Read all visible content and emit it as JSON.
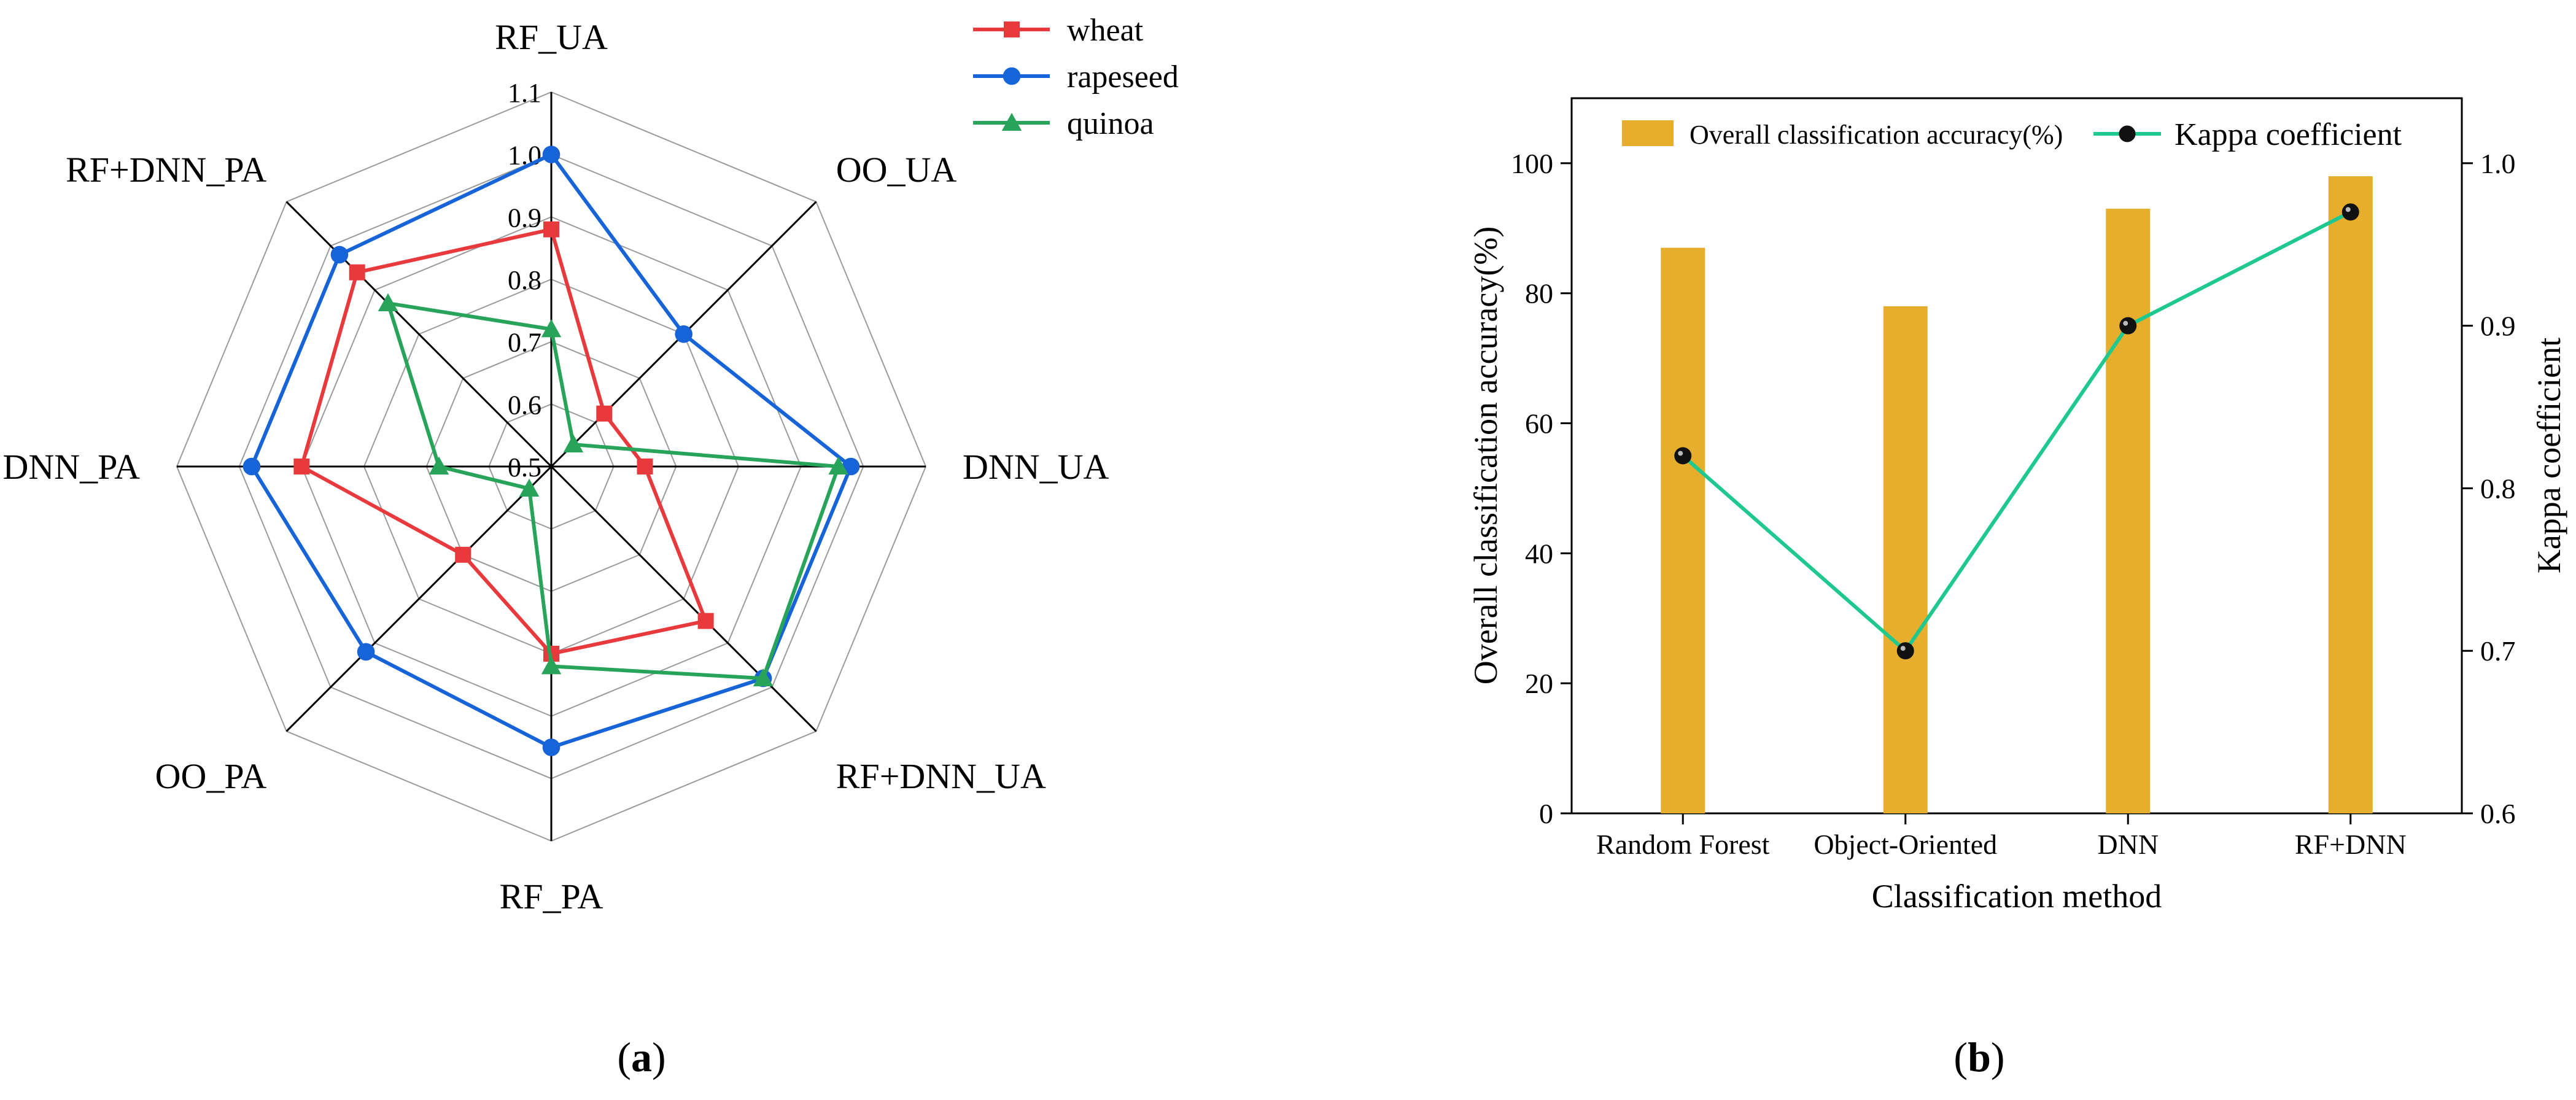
{
  "chart_data": [
    {
      "type": "radar",
      "panel_label": {
        "open": "(",
        "letter": "a",
        "close": ")"
      },
      "axes": [
        "RF_UA",
        "OO_UA",
        "DNN_UA",
        "RF+DNN_UA",
        "RF_PA",
        "OO_PA",
        "DNN_PA",
        "RF+DNN_PA"
      ],
      "rlim": [
        0.5,
        1.1
      ],
      "ticks": [
        0.5,
        0.6,
        0.7,
        0.8,
        0.9,
        1.0,
        1.1
      ],
      "tick_labels": [
        "0.5",
        "0.6",
        "0.7",
        "0.8",
        "0.9",
        "1.0",
        "1.1"
      ],
      "series": [
        {
          "name": "wheat",
          "color": "#e8393c",
          "marker": "square",
          "values": [
            0.88,
            0.62,
            0.65,
            0.85,
            0.8,
            0.7,
            0.9,
            0.94
          ]
        },
        {
          "name": "rapeseed",
          "color": "#1764d8",
          "marker": "circle",
          "values": [
            1.0,
            0.8,
            0.98,
            0.98,
            0.95,
            0.92,
            0.98,
            0.98
          ]
        },
        {
          "name": "quinoa",
          "color": "#27a35a",
          "marker": "triangle",
          "values": [
            0.72,
            0.55,
            0.96,
            0.98,
            0.82,
            0.55,
            0.68,
            0.87
          ]
        }
      ]
    },
    {
      "type": "bar+line",
      "panel_label": {
        "open": "(",
        "letter": "b",
        "close": ")"
      },
      "xlabel": "Classification method",
      "ylabel_left": "Overall classification accuracy(%)",
      "ylabel_right": "Kappa coefficient",
      "categories": [
        "Random Forest",
        "Object-Oriented",
        "DNN",
        "RF+DNN"
      ],
      "ylim_left": [
        0,
        110
      ],
      "yticks_left": [
        0,
        20,
        40,
        60,
        80,
        100
      ],
      "yticklabels_left": [
        "0",
        "20",
        "40",
        "60",
        "80",
        "100"
      ],
      "ylim_right": [
        0.6,
        1.04
      ],
      "yticks_right": [
        0.6,
        0.7,
        0.8,
        0.9,
        1.0
      ],
      "yticklabels_right": [
        "0.6",
        "0.7",
        "0.8",
        "0.9",
        "1.0"
      ],
      "series": [
        {
          "name": "Overall classification accuracy(%)",
          "type": "bar",
          "axis": "left",
          "color": "#e6ae2c",
          "values": [
            87,
            78,
            93,
            98
          ]
        },
        {
          "name": "Kappa coefficient",
          "type": "line",
          "axis": "right",
          "color": "#1ec88f",
          "values": [
            0.82,
            0.7,
            0.9,
            0.97
          ]
        }
      ]
    }
  ]
}
